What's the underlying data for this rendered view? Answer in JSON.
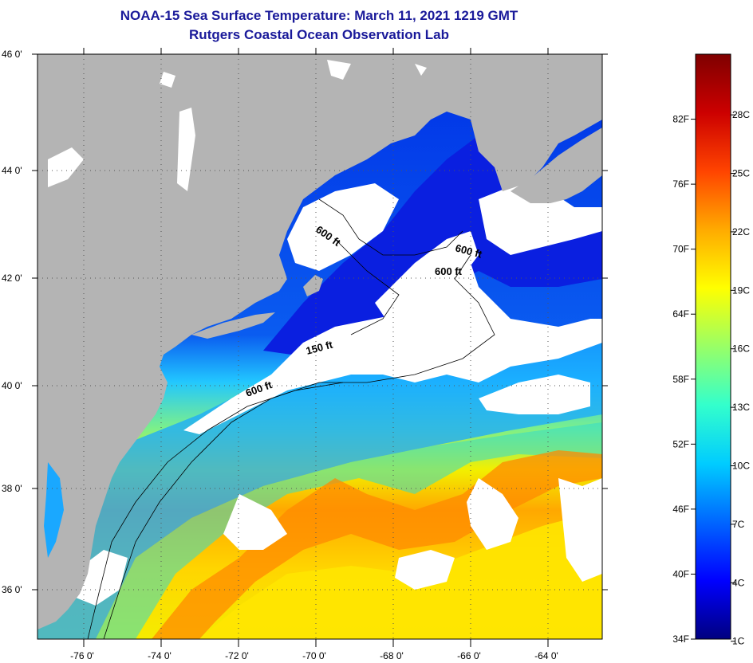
{
  "header": {
    "title": "NOAA-15 Sea Surface Temperature:  March 11, 2021 1219 GMT",
    "subtitle": "Rutgers Coastal Ocean Observation Lab"
  },
  "axes": {
    "lat_labels": [
      "46 0'",
      "44 0'",
      "42 0'",
      "40 0'",
      "38 0'",
      "36 0'"
    ],
    "lon_labels": [
      "-76 0'",
      "-74 0'",
      "-72 0'",
      "-70 0'",
      "-68 0'",
      "-66 0'",
      "-64 0'"
    ]
  },
  "contours": [
    {
      "label": "600 ft"
    },
    {
      "label": "600 ft"
    },
    {
      "label": "600 ft"
    },
    {
      "label": "150 ft"
    },
    {
      "label": "600 ft"
    }
  ],
  "colorbar": {
    "fahrenheit": [
      "82F",
      "76F",
      "70F",
      "64F",
      "58F",
      "52F",
      "46F",
      "40F",
      "34F"
    ],
    "celsius": [
      "28C",
      "25C",
      "22C",
      "19C",
      "16C",
      "13C",
      "10C",
      "7C",
      "4C",
      "1C"
    ],
    "stops": [
      "#00007f",
      "#0000ff",
      "#0066ff",
      "#00ccff",
      "#33ffcc",
      "#99ff66",
      "#ffff00",
      "#ffaa00",
      "#ff4400",
      "#cc0000",
      "#7f0000"
    ]
  },
  "colors": {
    "land": "#b4b4b4",
    "cloud": "#ffffff",
    "title": "#1a1a9a"
  }
}
